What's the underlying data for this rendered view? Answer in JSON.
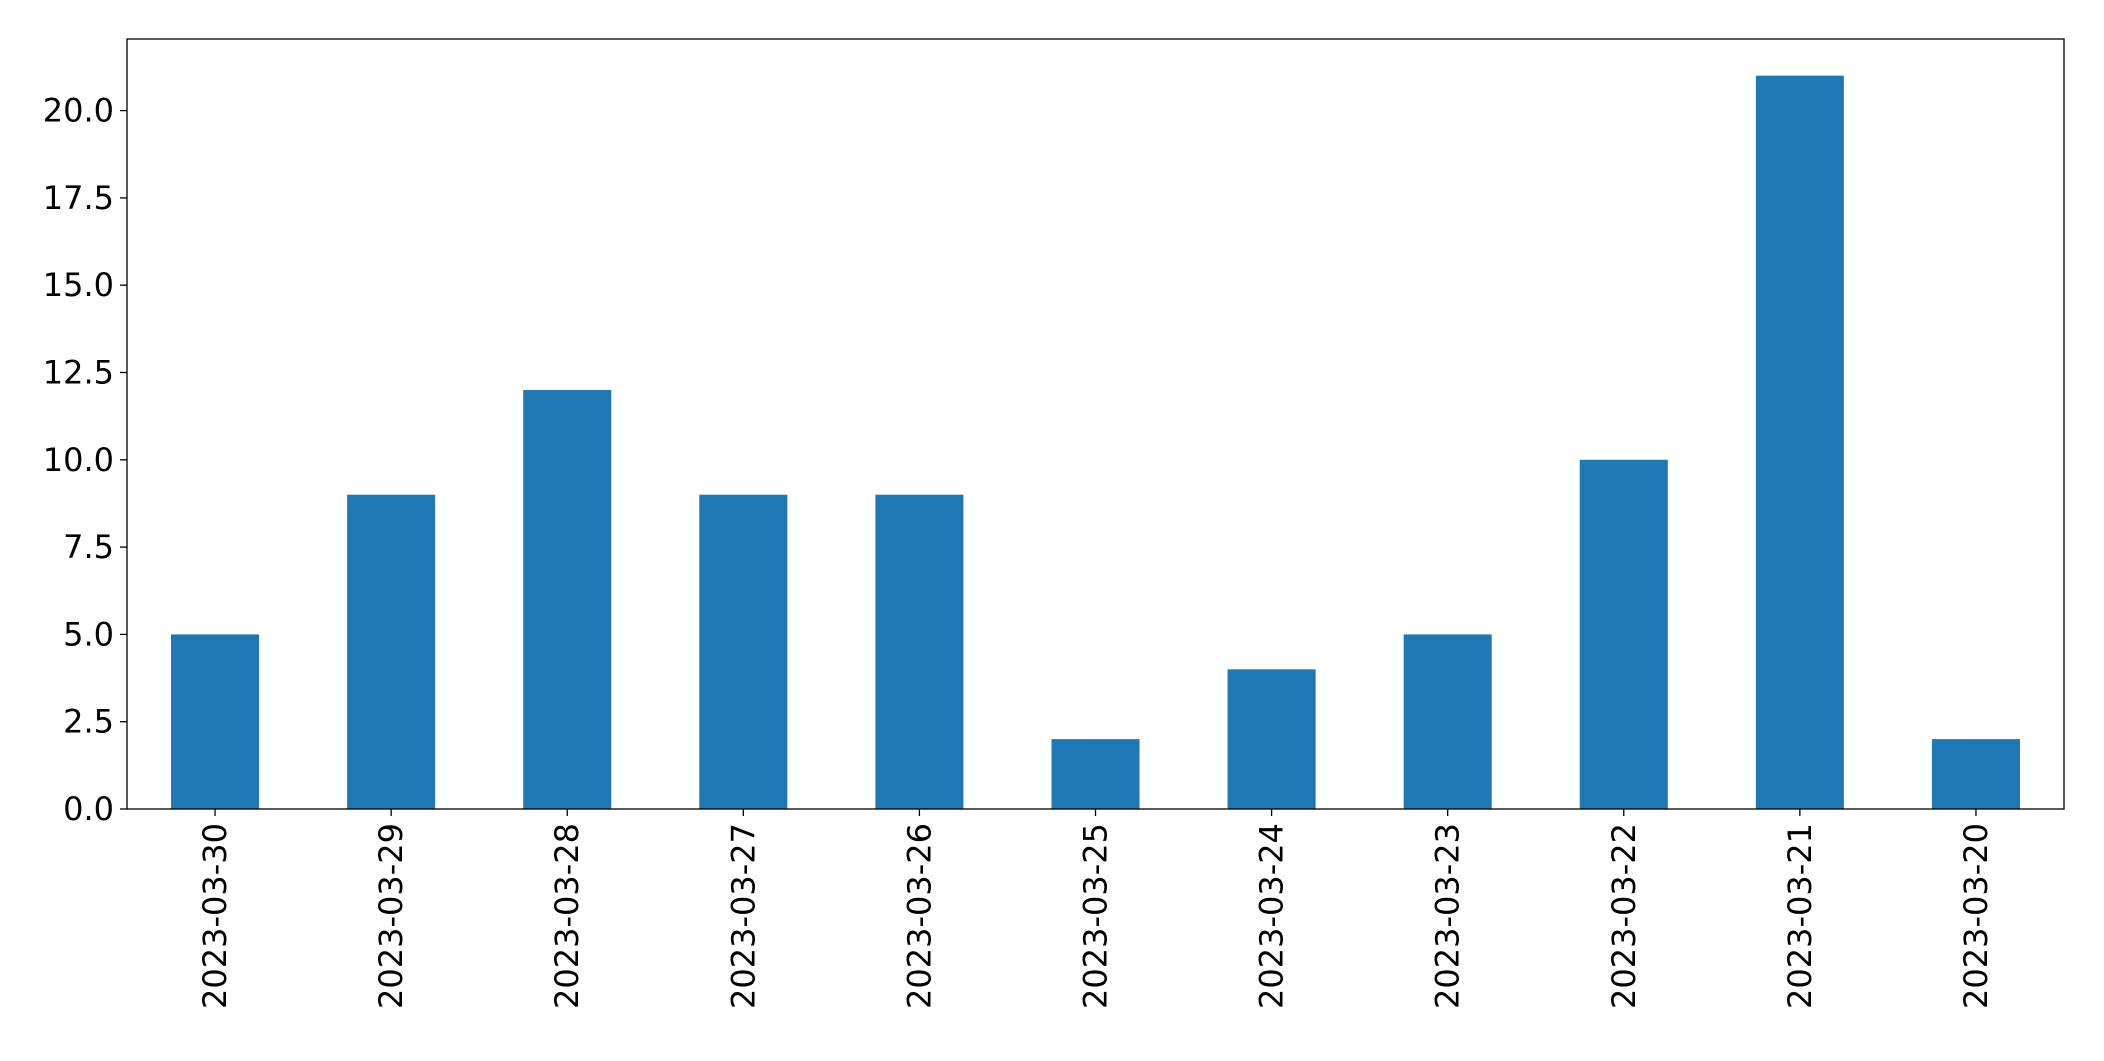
{
  "chart_data": {
    "type": "bar",
    "categories": [
      "2023-03-30",
      "2023-03-29",
      "2023-03-28",
      "2023-03-27",
      "2023-03-26",
      "2023-03-25",
      "2023-03-24",
      "2023-03-23",
      "2023-03-22",
      "2023-03-21",
      "2023-03-20"
    ],
    "values": [
      5,
      9,
      12,
      9,
      9,
      2,
      4,
      5,
      10,
      21,
      2
    ],
    "color": "#1f77b4",
    "ylim": [
      0,
      22.05
    ],
    "yticks": [
      {
        "value": 0,
        "label": "0.0"
      },
      {
        "value": 2.5,
        "label": "2.5"
      },
      {
        "value": 5,
        "label": "5.0"
      },
      {
        "value": 7.5,
        "label": "7.5"
      },
      {
        "value": 10,
        "label": "10.0"
      },
      {
        "value": 12.5,
        "label": "12.5"
      },
      {
        "value": 15,
        "label": "15.0"
      },
      {
        "value": 17.5,
        "label": "17.5"
      },
      {
        "value": 20,
        "label": "20.0"
      }
    ],
    "grid": false
  }
}
